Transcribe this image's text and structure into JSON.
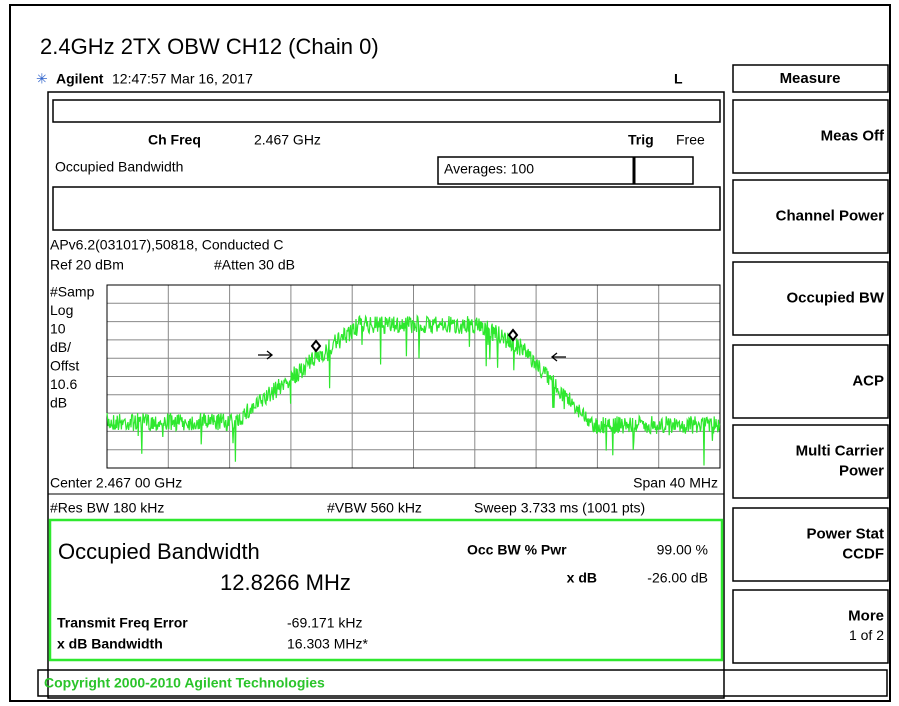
{
  "title": "2.4GHz 2TX OBW CH12 (Chain 0)",
  "header": {
    "brand": "Agilent",
    "timestamp": "12:47:57  Mar 16, 2017",
    "indicator": "L"
  },
  "settings": {
    "ch_freq_label": "Ch Freq",
    "ch_freq_value": "2.467 GHz",
    "trig_label": "Trig",
    "trig_value": "Free",
    "mode": "Occupied Bandwidth",
    "averages": "Averages: 100",
    "info": "APv6.2(031017),50818, Conducted C",
    "ref": "Ref 20 dBm",
    "atten": "#Atten 30 dB"
  },
  "scale_labels": [
    "#Samp",
    "Log",
    "10",
    "dB/",
    "Offst",
    "10.6",
    "dB"
  ],
  "footer": {
    "center": "Center 2.467 00 GHz",
    "span": "Span 40 MHz",
    "res_bw": "#Res BW 180 kHz",
    "vbw": "#VBW 560 kHz",
    "sweep": "Sweep 3.733 ms (1001 pts)"
  },
  "results": {
    "heading": "Occupied Bandwidth",
    "obw": "12.8266 MHz",
    "occ_pwr_label": "Occ BW % Pwr",
    "occ_pwr_value": "99.00 %",
    "xdb_label": "x dB",
    "xdb_value": "-26.00 dB",
    "freq_error_label": "Transmit Freq Error",
    "freq_error_value": "-69.171 kHz",
    "xdb_bw_label": "x dB Bandwidth",
    "xdb_bw_value": "16.303 MHz*"
  },
  "copyright": "Copyright 2000-2010 Agilent Technologies",
  "menu": {
    "title": "Measure",
    "keys": [
      [
        "Meas Off"
      ],
      [
        "Channel Power"
      ],
      [
        "Occupied BW"
      ],
      [
        "ACP"
      ],
      [
        "Multi Carrier",
        "Power"
      ],
      [
        "Power Stat",
        "CCDF"
      ],
      [
        "More",
        "1 of 2"
      ]
    ]
  }
}
